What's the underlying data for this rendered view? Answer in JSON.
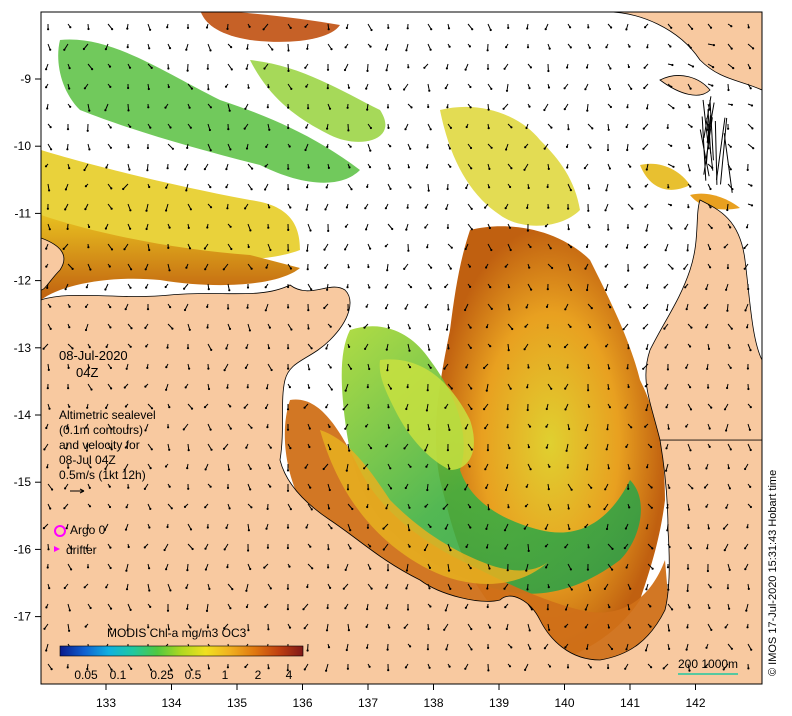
{
  "map": {
    "lon_ticks": [
      "133",
      "134",
      "135",
      "136",
      "137",
      "138",
      "139",
      "140",
      "141",
      "142"
    ],
    "lat_ticks": [
      "-9",
      "-10",
      "-11",
      "-12",
      "-13",
      "-14",
      "-15",
      "-16",
      "-17"
    ],
    "colors": {
      "land": "#f8c9a0",
      "no_data": "#ffffff",
      "frame": "#000000"
    }
  },
  "annotation": {
    "date": "08-Jul-2020",
    "time": "04Z",
    "legend_lines": [
      "Altimetric sealevel",
      "(0.1m contours)",
      "and velocity for",
      "08-Jul 04Z",
      "0.5m/s (1kt 12h)"
    ]
  },
  "markers": {
    "argo_label": "Argo 0",
    "drifter_label": "drifter",
    "argo_color": "#ff00ff",
    "drifter_color": "#ff00ff"
  },
  "colorbar": {
    "title": "MODIS Chl-a mg/m3 OC3",
    "tick_labels": [
      "0.05",
      "0.1",
      "0.25",
      "0.5",
      "1",
      "2",
      "4"
    ],
    "colors": [
      "#0a1a8c",
      "#1060d0",
      "#10b0e0",
      "#20c8a0",
      "#50c840",
      "#b0d820",
      "#f0e020",
      "#f0b020",
      "#e07810",
      "#c04010",
      "#801818"
    ]
  },
  "scale": {
    "label": "200  1000m",
    "color": "#20c8a0"
  },
  "credit": "© IMOS 17-Jul-2020 15:31:43 Hobart time"
}
